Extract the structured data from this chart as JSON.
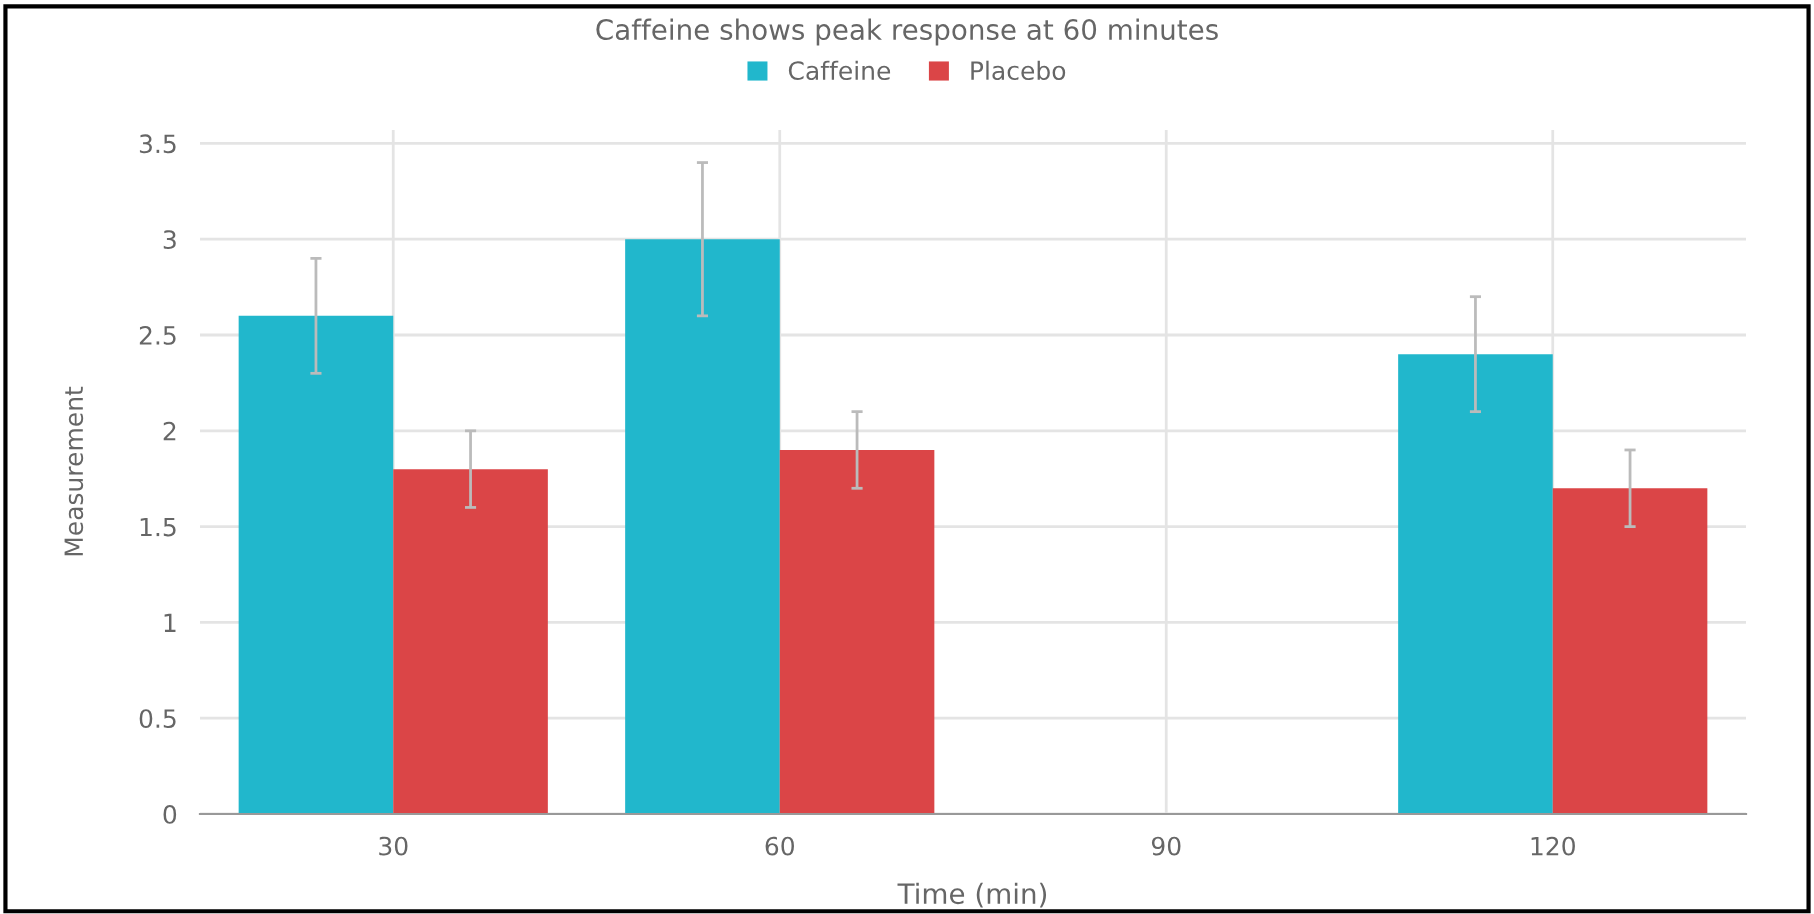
{
  "chart_data": {
    "type": "bar",
    "title": "Caffeine shows peak response at 60 minutes",
    "xlabel": "Time (min)",
    "ylabel": "Measurement",
    "x": [
      30,
      60,
      120
    ],
    "series": [
      {
        "name": "Caffeine",
        "color": "#21b7cc",
        "values": [
          2.6,
          3.0,
          2.4
        ],
        "errors": [
          0.3,
          0.4,
          0.3
        ]
      },
      {
        "name": "Placebo",
        "color": "#db4547",
        "values": [
          1.8,
          1.9,
          1.7
        ],
        "errors": [
          0.2,
          0.2,
          0.2
        ]
      }
    ],
    "xlim": [
      15,
      135
    ],
    "xticks": [
      30,
      60,
      90,
      120
    ],
    "ylim": [
      0,
      3.57
    ],
    "yticks": [
      0,
      0.5,
      1,
      1.5,
      2,
      2.5,
      3,
      3.5
    ],
    "grid": true,
    "legend": "top"
  }
}
